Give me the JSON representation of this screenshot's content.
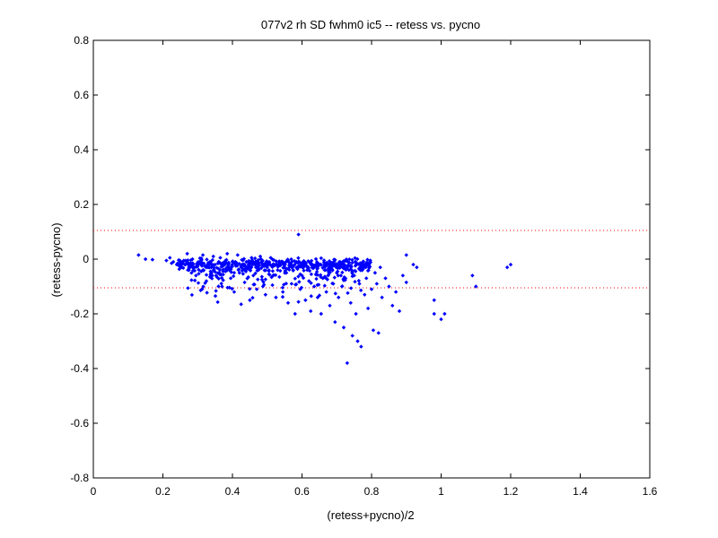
{
  "chart_data": {
    "type": "scatter",
    "title": "077v2 rh SD fwhm0 ic5 -- retess vs. pycno",
    "xlabel": "(retess+pycno)/2",
    "ylabel": "(retess-pycno)",
    "xlim": [
      0,
      1.6
    ],
    "ylim": [
      -0.8,
      0.8
    ],
    "x_ticks": [
      "0",
      "0.2",
      "0.4",
      "0.6",
      "0.8",
      "1",
      "1.2",
      "1.4",
      "1.6"
    ],
    "y_ticks": [
      "0.8",
      "0.6",
      "0.4",
      "0.2",
      "0",
      "-0.2",
      "-0.4",
      "-0.6",
      "-0.8"
    ],
    "grid": false,
    "marker_color": "#0000ff",
    "reference_line_color": "#ff0000",
    "reference_lines": [
      0.105,
      -0.105
    ],
    "points": [
      [
        0.13,
        0.015
      ],
      [
        0.15,
        0.0
      ],
      [
        0.17,
        -0.002
      ],
      [
        0.21,
        -0.005
      ],
      [
        0.22,
        0.005
      ],
      [
        0.225,
        -0.015
      ],
      [
        0.23,
        -0.01
      ],
      [
        0.24,
        -0.02
      ],
      [
        0.25,
        -0.01
      ],
      [
        0.255,
        -0.03
      ],
      [
        0.26,
        -0.005
      ],
      [
        0.265,
        -0.02
      ],
      [
        0.27,
        0.02
      ],
      [
        0.275,
        -0.04
      ],
      [
        0.28,
        -0.015
      ],
      [
        0.285,
        0.0
      ],
      [
        0.29,
        -0.03
      ],
      [
        0.295,
        -0.06
      ],
      [
        0.3,
        -0.02
      ],
      [
        0.305,
        -0.01
      ],
      [
        0.31,
        -0.045
      ],
      [
        0.315,
        0.015
      ],
      [
        0.32,
        -0.025
      ],
      [
        0.325,
        -0.08
      ],
      [
        0.33,
        -0.03
      ],
      [
        0.335,
        -0.01
      ],
      [
        0.34,
        -0.05
      ],
      [
        0.345,
        0.01
      ],
      [
        0.35,
        -0.02
      ],
      [
        0.355,
        -0.065
      ],
      [
        0.36,
        -0.035
      ],
      [
        0.365,
        0.005
      ],
      [
        0.37,
        -0.1
      ],
      [
        0.375,
        -0.02
      ],
      [
        0.38,
        -0.045
      ],
      [
        0.385,
        0.02
      ],
      [
        0.39,
        -0.03
      ],
      [
        0.395,
        -0.07
      ],
      [
        0.4,
        -0.01
      ],
      [
        0.405,
        -0.12
      ],
      [
        0.41,
        -0.025
      ],
      [
        0.415,
        0.015
      ],
      [
        0.42,
        -0.05
      ],
      [
        0.425,
        -0.165
      ],
      [
        0.43,
        -0.02
      ],
      [
        0.435,
        -0.085
      ],
      [
        0.44,
        -0.01
      ],
      [
        0.445,
        -0.035
      ],
      [
        0.45,
        -0.15
      ],
      [
        0.455,
        0.005
      ],
      [
        0.46,
        -0.06
      ],
      [
        0.465,
        -0.02
      ],
      [
        0.47,
        -0.11
      ],
      [
        0.475,
        -0.04
      ],
      [
        0.48,
        0.01
      ],
      [
        0.485,
        -0.075
      ],
      [
        0.49,
        -0.025
      ],
      [
        0.495,
        -0.13
      ],
      [
        0.5,
        -0.03
      ],
      [
        0.505,
        -0.055
      ],
      [
        0.51,
        0.005
      ],
      [
        0.515,
        -0.095
      ],
      [
        0.52,
        -0.02
      ],
      [
        0.525,
        -0.14
      ],
      [
        0.53,
        -0.04
      ],
      [
        0.535,
        -0.065
      ],
      [
        0.54,
        -0.01
      ],
      [
        0.545,
        -0.12
      ],
      [
        0.55,
        -0.03
      ],
      [
        0.555,
        -0.05
      ],
      [
        0.56,
        -0.16
      ],
      [
        0.565,
        -0.02
      ],
      [
        0.57,
        -0.09
      ],
      [
        0.575,
        -0.04
      ],
      [
        0.58,
        -0.2
      ],
      [
        0.585,
        -0.03
      ],
      [
        0.59,
        0.09
      ],
      [
        0.595,
        -0.11
      ],
      [
        0.6,
        -0.06
      ],
      [
        0.605,
        -0.02
      ],
      [
        0.61,
        -0.15
      ],
      [
        0.615,
        -0.04
      ],
      [
        0.62,
        -0.08
      ],
      [
        0.625,
        -0.19
      ],
      [
        0.63,
        -0.03
      ],
      [
        0.635,
        -0.1
      ],
      [
        0.64,
        -0.055
      ],
      [
        0.645,
        -0.14
      ],
      [
        0.65,
        -0.02
      ],
      [
        0.655,
        -0.2
      ],
      [
        0.66,
        -0.07
      ],
      [
        0.665,
        -0.04
      ],
      [
        0.67,
        -0.12
      ],
      [
        0.675,
        -0.06
      ],
      [
        0.68,
        -0.17
      ],
      [
        0.685,
        -0.03
      ],
      [
        0.69,
        -0.09
      ],
      [
        0.695,
        -0.23
      ],
      [
        0.7,
        -0.05
      ],
      [
        0.705,
        -0.14
      ],
      [
        0.71,
        -0.02
      ],
      [
        0.715,
        -0.1
      ],
      [
        0.72,
        -0.25
      ],
      [
        0.725,
        -0.07
      ],
      [
        0.73,
        -0.38
      ],
      [
        0.735,
        -0.04
      ],
      [
        0.74,
        -0.16
      ],
      [
        0.745,
        -0.28
      ],
      [
        0.75,
        -0.06
      ],
      [
        0.755,
        -0.2
      ],
      [
        0.76,
        -0.3
      ],
      [
        0.765,
        -0.09
      ],
      [
        0.77,
        -0.32
      ],
      [
        0.775,
        -0.03
      ],
      [
        0.78,
        -0.13
      ],
      [
        0.785,
        -0.07
      ],
      [
        0.79,
        -0.18
      ],
      [
        0.795,
        -0.01
      ],
      [
        0.8,
        -0.11
      ],
      [
        0.805,
        -0.26
      ],
      [
        0.81,
        -0.05
      ],
      [
        0.815,
        -0.09
      ],
      [
        0.82,
        -0.27
      ],
      [
        0.825,
        -0.03
      ],
      [
        0.83,
        -0.14
      ],
      [
        0.84,
        -0.07
      ],
      [
        0.85,
        -0.1
      ],
      [
        0.86,
        -0.17
      ],
      [
        0.87,
        -0.12
      ],
      [
        0.88,
        -0.19
      ],
      [
        0.89,
        -0.06
      ],
      [
        0.9,
        0.015
      ],
      [
        0.9,
        -0.085
      ],
      [
        0.92,
        -0.02
      ],
      [
        0.93,
        -0.03
      ],
      [
        0.98,
        -0.15
      ],
      [
        0.98,
        -0.2
      ],
      [
        1.0,
        -0.22
      ],
      [
        1.01,
        -0.2
      ],
      [
        1.09,
        -0.06
      ],
      [
        1.1,
        -0.1
      ],
      [
        1.19,
        -0.03
      ],
      [
        1.2,
        -0.02
      ]
    ],
    "cluster": {
      "x_range": [
        0.24,
        0.8
      ],
      "y_center": -0.02,
      "y_spread": 0.025
    }
  }
}
